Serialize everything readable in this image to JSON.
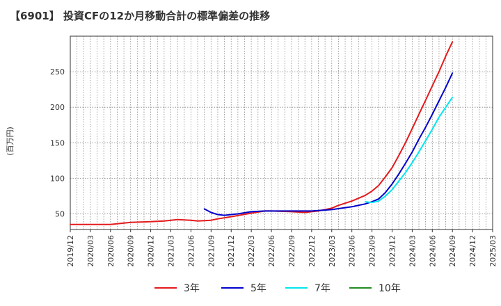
{
  "chart_data": {
    "type": "line",
    "title": "【6901】 投資CFの12か月移動合計の標準偏差の推移",
    "ylabel": "(百万円)",
    "xlabel": "",
    "ylim": [
      28,
      300
    ],
    "y_ticks": [
      50,
      100,
      150,
      200,
      250
    ],
    "x_range": [
      "2019-12",
      "2025-03"
    ],
    "x_tick_labels": [
      "2019/12",
      "2020/03",
      "2020/06",
      "2020/09",
      "2020/12",
      "2021/03",
      "2021/06",
      "2021/09",
      "2021/12",
      "2022/03",
      "2022/06",
      "2022/09",
      "2022/12",
      "2023/03",
      "2023/06",
      "2023/09",
      "2023/12",
      "2024/03",
      "2024/06",
      "2024/09",
      "2024/12",
      "2025/03"
    ],
    "grid": true,
    "legend_position": "bottom",
    "series": [
      {
        "name": "3年",
        "color": "#e41a1c",
        "points": [
          [
            "2019-12",
            35
          ],
          [
            "2020-03",
            35
          ],
          [
            "2020-06",
            35
          ],
          [
            "2020-08",
            37
          ],
          [
            "2020-09",
            38
          ],
          [
            "2020-12",
            39
          ],
          [
            "2021-02",
            40
          ],
          [
            "2021-03",
            41
          ],
          [
            "2021-04",
            42
          ],
          [
            "2021-06",
            41
          ],
          [
            "2021-07",
            40
          ],
          [
            "2021-09",
            41
          ],
          [
            "2021-10",
            43
          ],
          [
            "2021-12",
            46
          ],
          [
            "2022-03",
            51
          ],
          [
            "2022-05",
            54
          ],
          [
            "2022-06",
            54
          ],
          [
            "2022-09",
            53
          ],
          [
            "2022-11",
            52
          ],
          [
            "2022-12",
            53
          ],
          [
            "2023-01",
            54
          ],
          [
            "2023-03",
            58
          ],
          [
            "2023-04",
            62
          ],
          [
            "2023-06",
            68
          ],
          [
            "2023-08",
            76
          ],
          [
            "2023-09",
            82
          ],
          [
            "2023-10",
            90
          ],
          [
            "2023-11",
            102
          ],
          [
            "2023-12",
            115
          ],
          [
            "2024-01",
            132
          ],
          [
            "2024-02",
            150
          ],
          [
            "2024-03",
            170
          ],
          [
            "2024-04",
            190
          ],
          [
            "2024-05",
            210
          ],
          [
            "2024-06",
            230
          ],
          [
            "2024-07",
            250
          ],
          [
            "2024-08",
            272
          ],
          [
            "2024-09",
            292
          ]
        ]
      },
      {
        "name": "5年",
        "color": "#0000cd",
        "points": [
          [
            "2021-08",
            57
          ],
          [
            "2021-09",
            52
          ],
          [
            "2021-10",
            49
          ],
          [
            "2021-11",
            48
          ],
          [
            "2021-12",
            49
          ],
          [
            "2022-01",
            50
          ],
          [
            "2022-03",
            53
          ],
          [
            "2022-05",
            54
          ],
          [
            "2022-06",
            54
          ],
          [
            "2022-09",
            54
          ],
          [
            "2022-12",
            54
          ],
          [
            "2023-03",
            56
          ],
          [
            "2023-06",
            60
          ],
          [
            "2023-08",
            64
          ],
          [
            "2023-09",
            67
          ],
          [
            "2023-10",
            71
          ],
          [
            "2023-11",
            80
          ],
          [
            "2023-12",
            92
          ],
          [
            "2024-01",
            106
          ],
          [
            "2024-02",
            121
          ],
          [
            "2024-03",
            137
          ],
          [
            "2024-04",
            155
          ],
          [
            "2024-05",
            172
          ],
          [
            "2024-06",
            190
          ],
          [
            "2024-07",
            209
          ],
          [
            "2024-08",
            228
          ],
          [
            "2024-09",
            248
          ]
        ]
      },
      {
        "name": "7年",
        "color": "#00e5ee",
        "points": [
          [
            "2023-08",
            67
          ],
          [
            "2023-09",
            66
          ],
          [
            "2023-10",
            68
          ],
          [
            "2023-11",
            75
          ],
          [
            "2023-12",
            84
          ],
          [
            "2024-01",
            96
          ],
          [
            "2024-02",
            108
          ],
          [
            "2024-03",
            122
          ],
          [
            "2024-04",
            137
          ],
          [
            "2024-05",
            153
          ],
          [
            "2024-06",
            169
          ],
          [
            "2024-07",
            186
          ],
          [
            "2024-08",
            200
          ],
          [
            "2024-09",
            214
          ]
        ]
      },
      {
        "name": "10年",
        "color": "#228b22",
        "points": []
      }
    ]
  }
}
